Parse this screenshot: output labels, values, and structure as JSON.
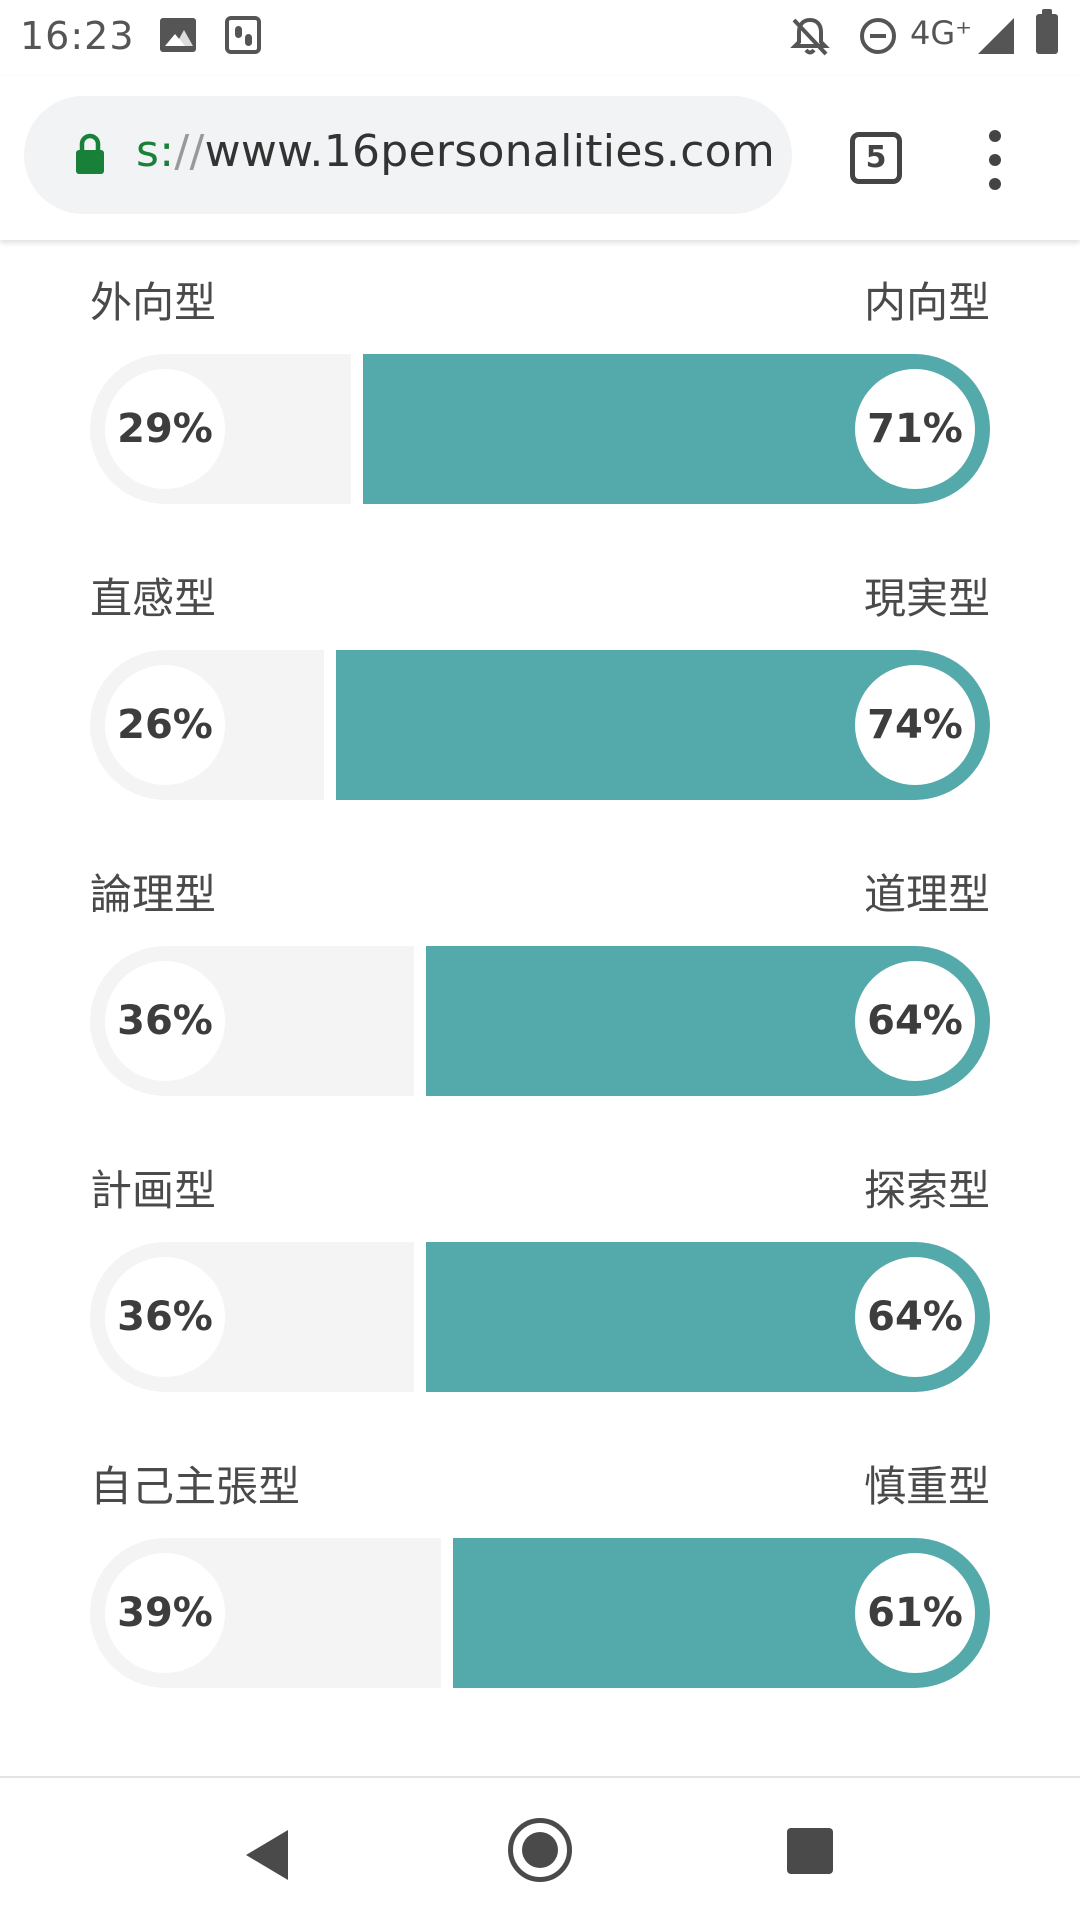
{
  "status_bar": {
    "time": "16:23",
    "network": "4G⁺",
    "icons": [
      "gallery-icon",
      "footsteps-icon",
      "bell-off-icon",
      "do-not-disturb-icon",
      "signal-icon",
      "battery-icon"
    ]
  },
  "browser": {
    "url_scheme": "s:",
    "url_sep": "//",
    "url_host": "www.16personalities.com",
    "tab_count": "5"
  },
  "colors": {
    "accent": "#54a9ab",
    "track": "#f4f4f4",
    "secure_green": "#188038"
  },
  "traits": [
    {
      "left_label": "外向型",
      "right_label": "内向型",
      "left_pct": "29%",
      "right_pct": "71%",
      "value": 71
    },
    {
      "left_label": "直感型",
      "right_label": "現実型",
      "left_pct": "26%",
      "right_pct": "74%",
      "value": 74
    },
    {
      "left_label": "論理型",
      "right_label": "道理型",
      "left_pct": "36%",
      "right_pct": "64%",
      "value": 64
    },
    {
      "left_label": "計画型",
      "right_label": "探索型",
      "left_pct": "36%",
      "right_pct": "64%",
      "value": 64
    },
    {
      "left_label": "自己主張型",
      "right_label": "慎重型",
      "left_pct": "39%",
      "right_pct": "61%",
      "value": 61
    }
  ]
}
